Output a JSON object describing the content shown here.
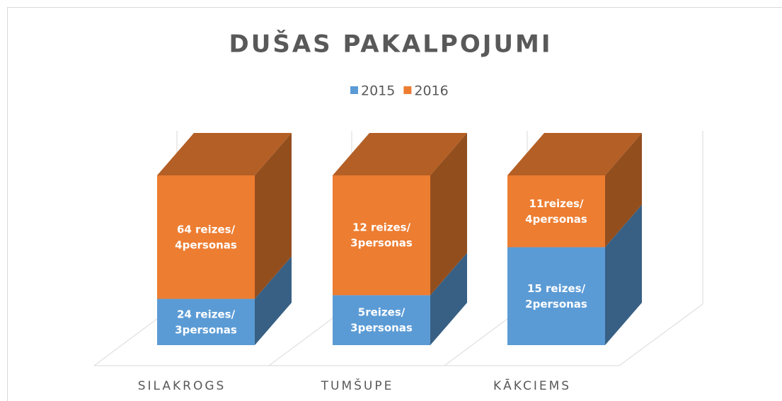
{
  "chart_data": {
    "type": "bar",
    "stacking": "percent",
    "title": "DUŠAS PAKALPOJUMI",
    "categories": [
      "SILAKROGS",
      "TUMŠUPE",
      "KĀKCIEMS"
    ],
    "legend": "top",
    "series": [
      {
        "name": "2015",
        "color": "#5b9bd5",
        "values": [
          24,
          5,
          15
        ],
        "value_labels": [
          "24 reizes/\n3personas",
          "5reizes/\n3personas",
          "15 reizes/\n2personas"
        ]
      },
      {
        "name": "2016",
        "color": "#ed7d31",
        "values": [
          64,
          12,
          11
        ],
        "value_labels": [
          "64 reizes/\n4personas",
          "12 reizes/\n3personas",
          "11reizes/\n4personas"
        ]
      }
    ]
  }
}
